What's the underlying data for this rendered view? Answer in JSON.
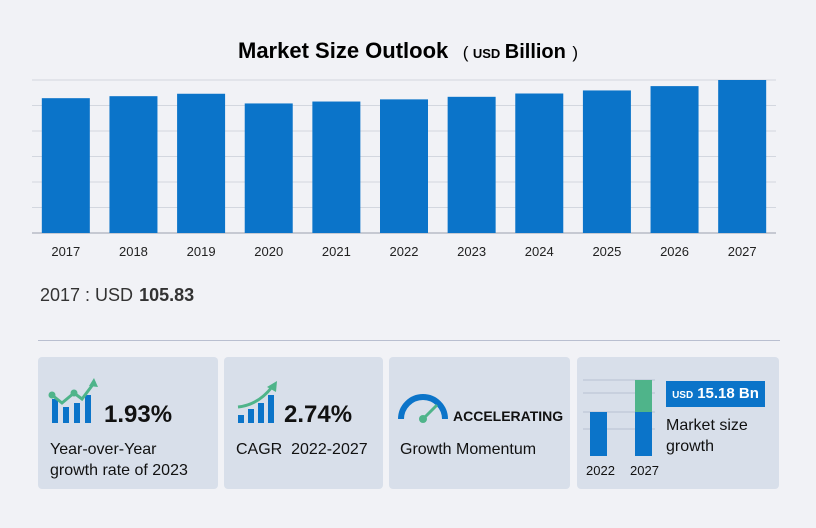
{
  "header": {
    "title": "Market Size Outlook",
    "unit_open": "(",
    "unit_currency": "USD",
    "unit_label": "Billion",
    "unit_close": ")"
  },
  "chart_data": {
    "type": "bar",
    "title": "Market Size Outlook (USD Billion)",
    "categories": [
      "2017",
      "2018",
      "2019",
      "2020",
      "2021",
      "2022",
      "2023",
      "2024",
      "2025",
      "2026",
      "2027"
    ],
    "values": [
      105.83,
      107.4,
      109.3,
      101.7,
      103.2,
      104.9,
      106.9,
      109.5,
      111.9,
      115.3,
      120.1
    ],
    "ylim": [
      0,
      120.1
    ],
    "bar_color": "#0b74c9",
    "grid": true
  },
  "baseline": {
    "label": "2017 : USD",
    "value": "105.83"
  },
  "cards": {
    "yoy": {
      "value": "1.93%",
      "line1": "Year-over-Year",
      "line2": "growth rate of 2023"
    },
    "cagr": {
      "value": "2.74%",
      "line1": "CAGR  2022-2027"
    },
    "momentum": {
      "value": "ACCELERATING",
      "line1": "Growth Momentum"
    },
    "market": {
      "badge_currency": "USD",
      "badge_value": "15.18 Bn",
      "line1": "Market size",
      "line2": "growth",
      "year_start": "2022",
      "year_end": "2027"
    }
  },
  "colors": {
    "accent_blue": "#0b74c9",
    "accent_green": "#4fb48a",
    "card_bg": "#d8dfea",
    "page_bg": "#f1f2f6"
  }
}
